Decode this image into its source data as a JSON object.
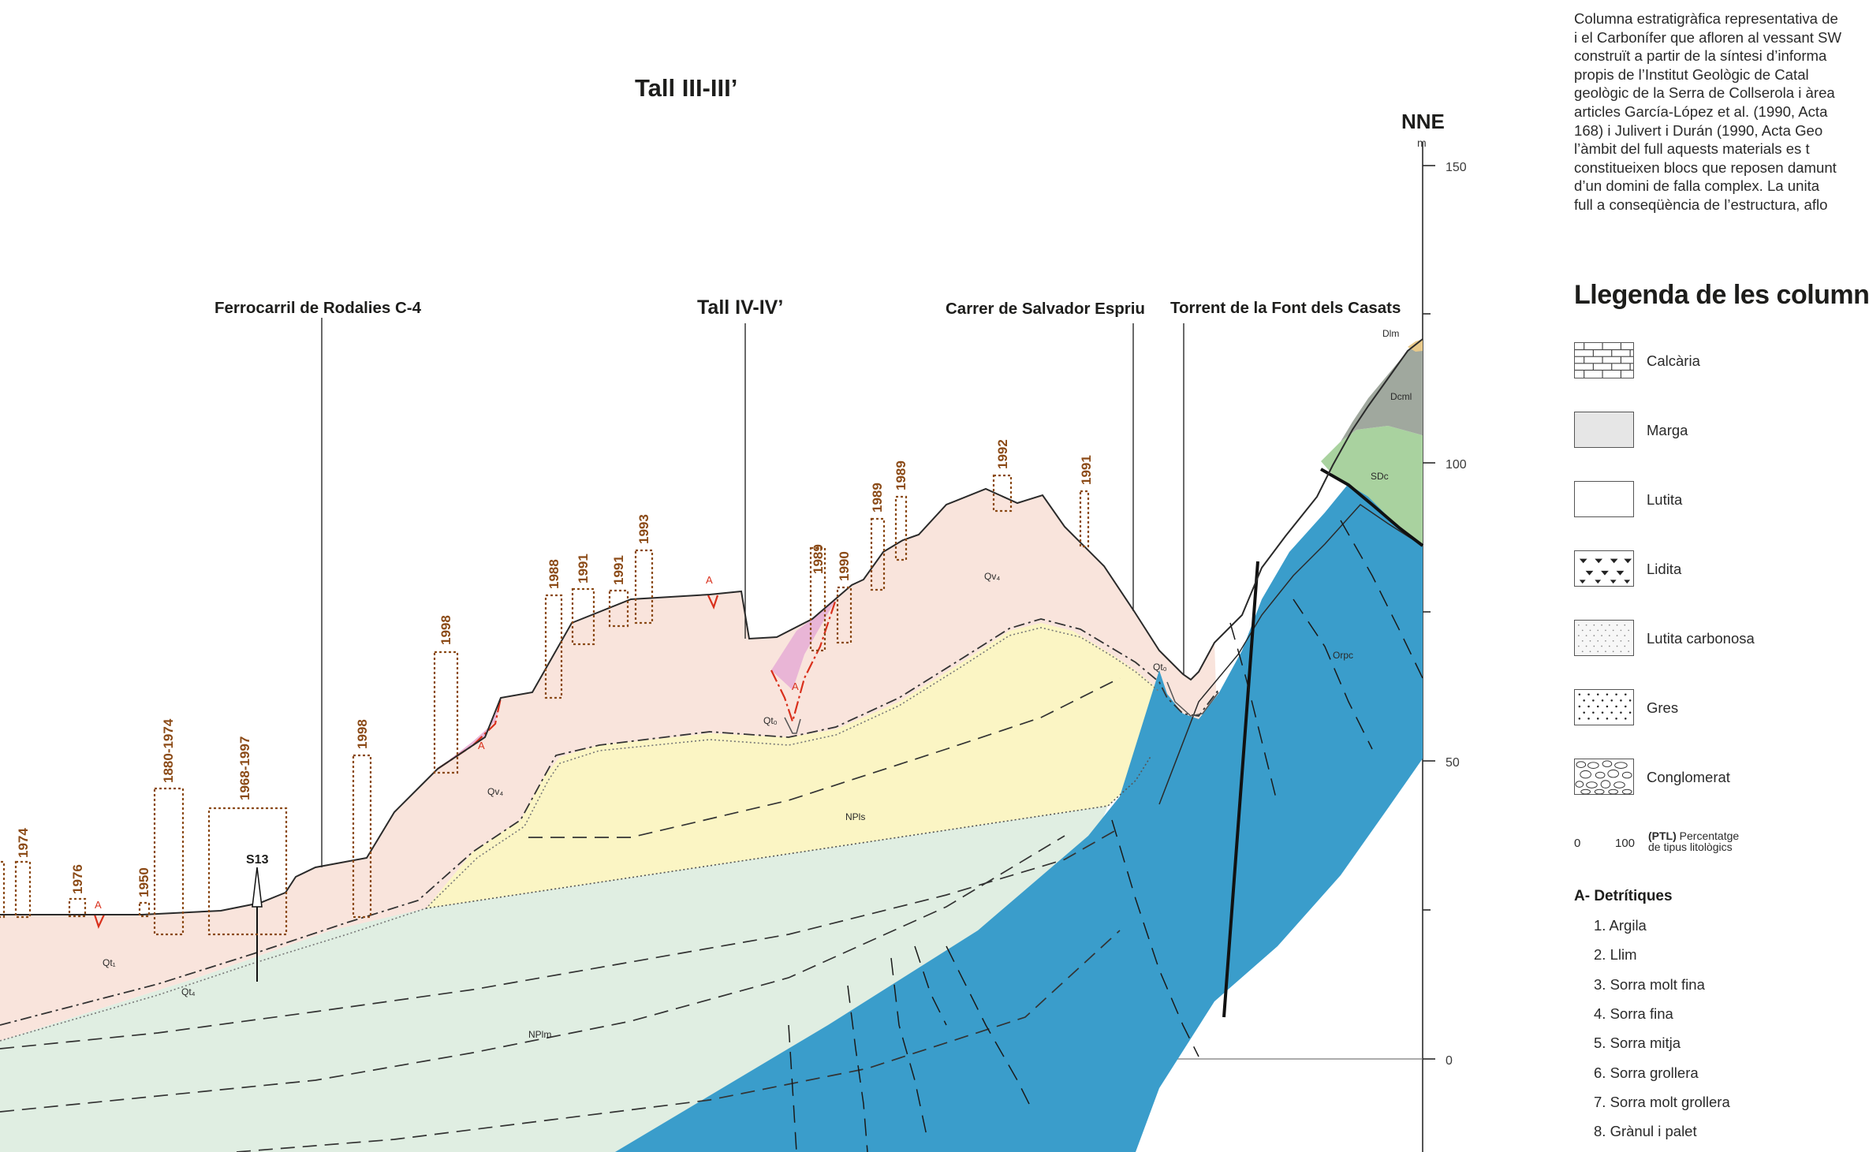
{
  "section": {
    "title": "Tall III-III’",
    "orientation": "NNE",
    "unit": "m",
    "elevation_ticks": [
      "150",
      "100",
      "50",
      "0"
    ],
    "landmarks": {
      "ferrocarril": "Ferrocarril de Rodalies C-4",
      "tall_iv": "Tall IV-IV’",
      "carrer": "Carrer de Salvador Espriu",
      "torrent": "Torrent de la Font dels Casats"
    },
    "borehole": "S13",
    "fill_marker": "A",
    "units": {
      "qt1": "Qt₁",
      "qt4": "Qt₄",
      "qt0_a": "Qt₀",
      "qt0_b": "Qt₀",
      "qv4_a": "Qv₄",
      "qv4_b": "Qv₄",
      "npls": "NPls",
      "nplm": "NPlm",
      "orpc": "Orpc",
      "sdc": "SDc",
      "dcml": "Dcml",
      "dlm": "Dlm"
    },
    "years": {
      "y1974": "1974",
      "y1976": "1976",
      "y1950": "1950",
      "y1880": "1880-1974",
      "y1968": "1968-1997",
      "y1998a": "1998",
      "y1998b": "1998",
      "y1988": "1988",
      "y1991a": "1991",
      "y1991b": "1991",
      "y1993": "1993",
      "y1989a": "1989",
      "y1990": "1990",
      "y1989b": "1989",
      "y1989c": "1989",
      "y1992": "1992",
      "y1991c": "1991"
    }
  },
  "description": {
    "lines": [
      "Columna estratigràfica representativa de",
      "i el Carbonífer que afloren al vessant SW",
      "construït a partir de la síntesi d’informa",
      "propis de l’Institut Geològic de Catal",
      "geològic de la Serra de Collserola i àrea",
      "articles García-López et al. (1990, Acta",
      "168) i Julivert i Durán (1990, Acta Geo",
      "l’àmbit del full aquests materials es t",
      "constitueixen blocs que reposen damunt",
      "d’un domini de falla complex. La unita",
      "full a conseqüència de l’estructura, aflo"
    ]
  },
  "legend": {
    "title": "Llegenda de les columnes",
    "items": [
      {
        "label": "Calcària",
        "pattern": "limestone-icon"
      },
      {
        "label": "Marga",
        "pattern": "marl-icon"
      },
      {
        "label": "Lutita",
        "pattern": "mudstone-icon"
      },
      {
        "label": "Lidita",
        "pattern": "lydite-icon"
      },
      {
        "label": "Lutita carbonosa",
        "pattern": "carbonaceous-mudstone-icon"
      },
      {
        "label": "Gres",
        "pattern": "sandstone-icon"
      },
      {
        "label": "Conglomerat",
        "pattern": "conglomerate-icon"
      }
    ],
    "ptl": {
      "zero": "0",
      "hundred": "100",
      "abbr": "(PTL)",
      "desc_line1": "Percentatge",
      "desc_line2": "de tipus litològics"
    },
    "group": {
      "title": "A- Detrítiques",
      "items": [
        "1. Argila",
        "2. Llim",
        "3. Sorra molt fina",
        "4. Sorra fina",
        "5. Sorra mitja",
        "6. Sorra grollera",
        "7. Sorra molt grollera",
        "8. Grànul i palet"
      ]
    }
  },
  "colors": {
    "quaternary_fill": "#f9e4dc",
    "anthropic_fill": "#e9b5d6",
    "pliocene_sand": "#fbf5c4",
    "pliocene_marl": "#e0eee2",
    "paleozoic_blue": "#3a9dcb",
    "silurian_green": "#a9d29f",
    "devonian_grey": "#a0a89e",
    "devonian_limestone": "#e8c98a",
    "years_brown": "#8b4a16",
    "anthropic_red": "#d9301c"
  }
}
